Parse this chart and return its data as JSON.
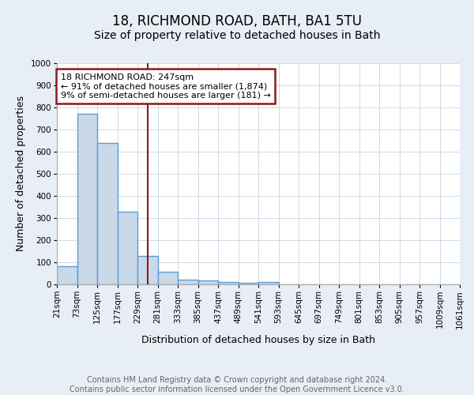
{
  "title": "18, RICHMOND ROAD, BATH, BA1 5TU",
  "subtitle": "Size of property relative to detached houses in Bath",
  "xlabel": "Distribution of detached houses by size in Bath",
  "ylabel": "Number of detached properties",
  "bin_labels": [
    "21sqm",
    "73sqm",
    "125sqm",
    "177sqm",
    "229sqm",
    "281sqm",
    "333sqm",
    "385sqm",
    "437sqm",
    "489sqm",
    "541sqm",
    "593sqm",
    "645sqm",
    "697sqm",
    "749sqm",
    "801sqm",
    "853sqm",
    "905sqm",
    "957sqm",
    "1009sqm",
    "1061sqm"
  ],
  "bar_values": [
    82,
    770,
    640,
    330,
    130,
    57,
    23,
    18,
    10,
    7,
    10,
    0,
    0,
    0,
    0,
    0,
    0,
    0,
    0,
    0
  ],
  "bar_color": "#c9d9e8",
  "bar_edge_color": "#5b9bd5",
  "bar_linewidth": 1.0,
  "vline_x": 4.52,
  "vline_color": "#8b1a1a",
  "vline_linewidth": 1.5,
  "annotation_text": "18 RICHMOND ROAD: 247sqm\n← 91% of detached houses are smaller (1,874)\n9% of semi-detached houses are larger (181) →",
  "annotation_box_color": "#8b1a1a",
  "ylim": [
    0,
    1000
  ],
  "yticks": [
    0,
    100,
    200,
    300,
    400,
    500,
    600,
    700,
    800,
    900,
    1000
  ],
  "footer_line1": "Contains HM Land Registry data © Crown copyright and database right 2024.",
  "footer_line2": "Contains public sector information licensed under the Open Government Licence v3.0.",
  "bg_color": "#e8eef5",
  "plot_bg_color": "#ffffff",
  "title_fontsize": 12,
  "subtitle_fontsize": 10,
  "axis_label_fontsize": 9,
  "tick_fontsize": 7.5,
  "footer_fontsize": 7,
  "grid_color": "#c8d4e0",
  "grid_linewidth": 0.6
}
